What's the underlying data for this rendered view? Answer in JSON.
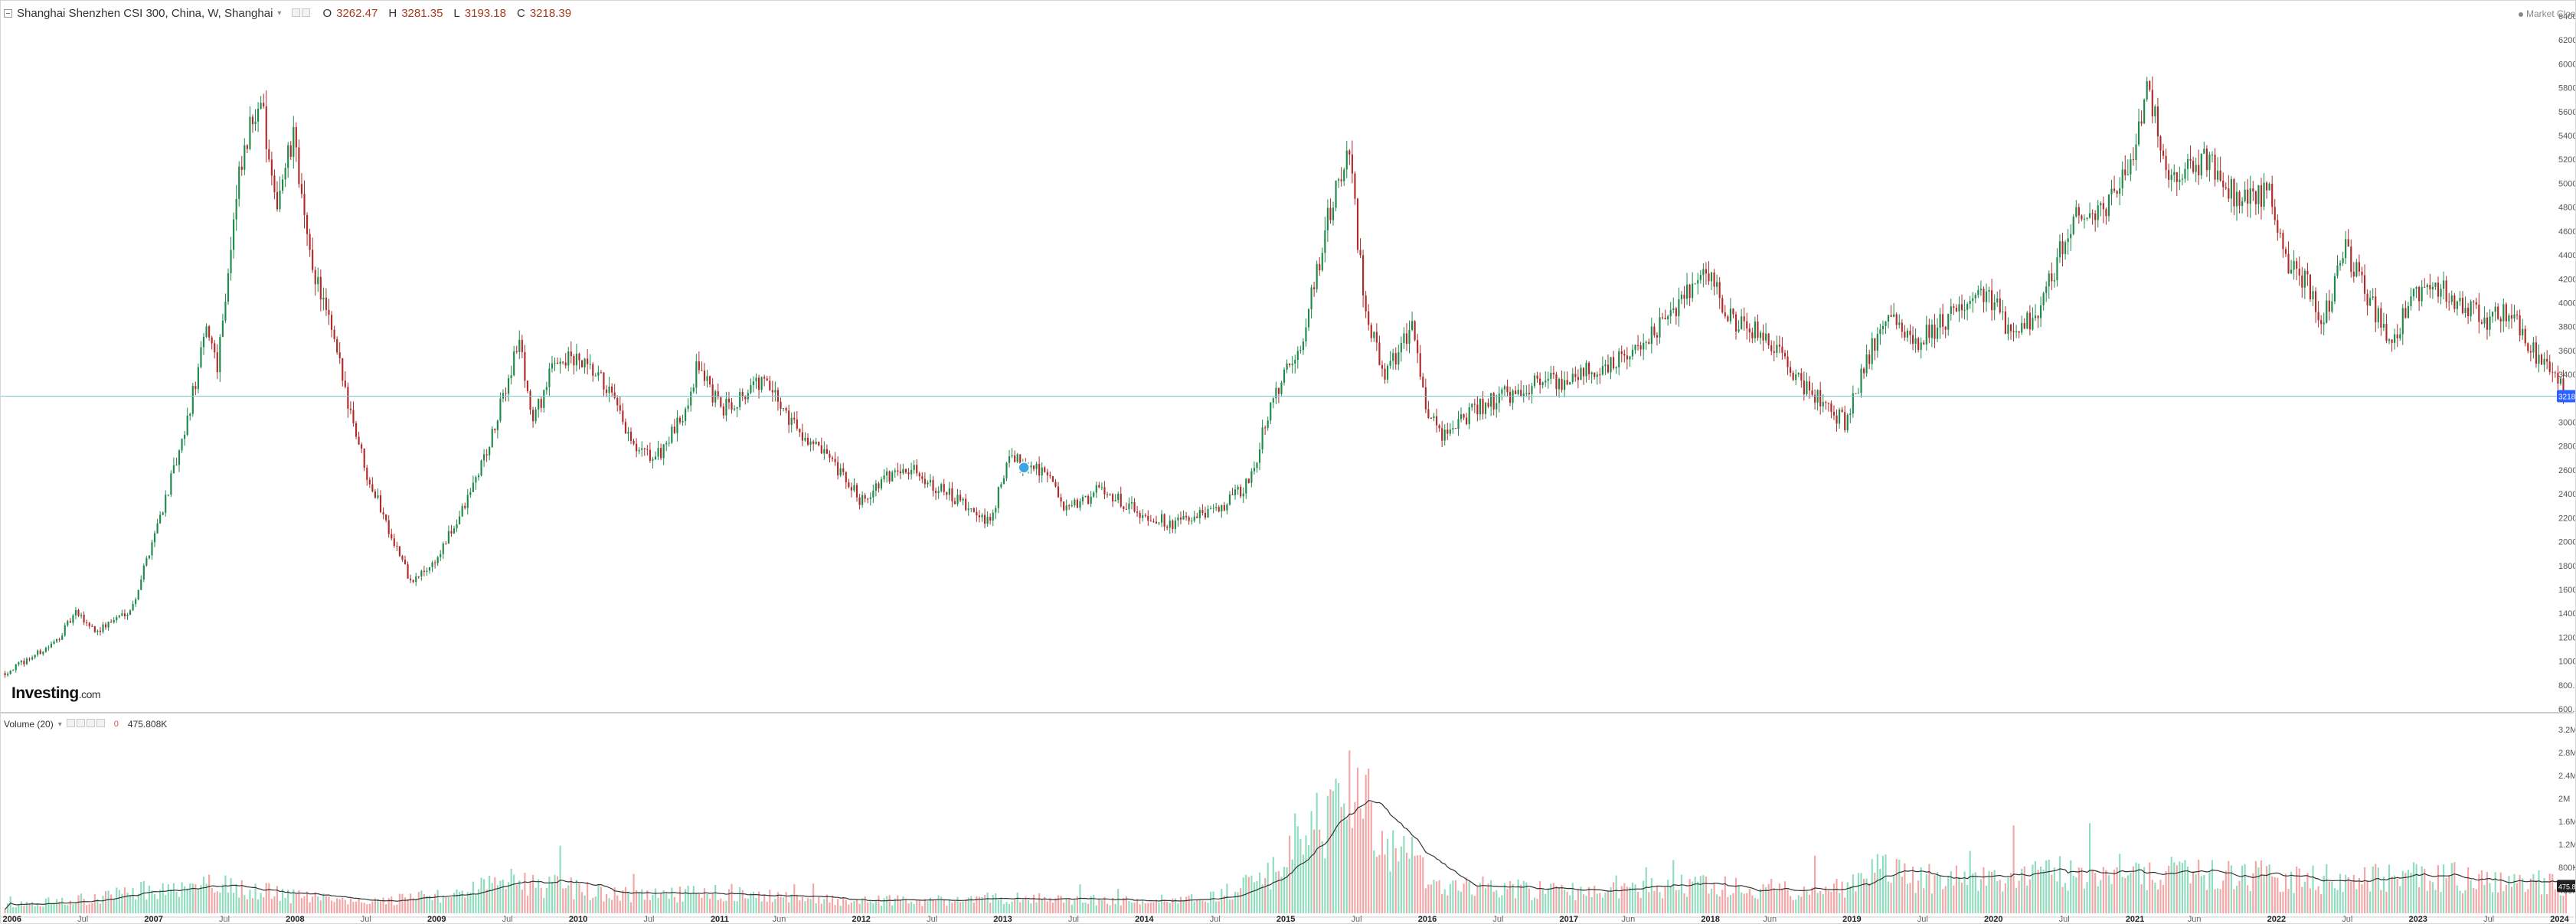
{
  "header": {
    "title": "Shanghai Shenzhen CSI 300, China, W, Shanghai",
    "open_key": "O",
    "open": "3262.47",
    "high_key": "H",
    "high": "3281.35",
    "low_key": "L",
    "low": "3193.18",
    "close_key": "C",
    "close": "3218.39",
    "market_status": "Market Closed"
  },
  "volume_panel": {
    "label": "Volume (20)",
    "value": "475.808K",
    "marker": "0"
  },
  "branding": {
    "logo": "Investing",
    "logo_suffix": ".com"
  },
  "colors": {
    "up": "#26a69a",
    "down": "#ef5350",
    "candle_up": "#1e8a4a",
    "candle_down": "#b02a2a",
    "vol_up": "#8fdcbf",
    "vol_down": "#f3a6a6",
    "price_line": "#7cc7d6",
    "price_tag_bg": "#2962ff",
    "ma_line": "#333333",
    "grid": "#eeeeee"
  },
  "chart_data": [
    {
      "type": "candlestick",
      "title": "Shanghai Shenzhen CSI 300, China, W, Shanghai",
      "interval": "weekly",
      "ylim": [
        600,
        6400
      ],
      "y_ticks": [
        "6400.00",
        "6200.00",
        "6000.00",
        "5800.00",
        "5600.00",
        "5400.00",
        "5200.00",
        "5000.00",
        "4800.00",
        "4600.00",
        "4400.00",
        "4200.00",
        "4000.00",
        "3800.00",
        "3600.00",
        "3400.00",
        "3200.00",
        "3000.00",
        "2800.00",
        "2600.00",
        "2400.00",
        "2200.00",
        "2000.00",
        "1800.00",
        "1600.00",
        "1400.00",
        "1200.00",
        "1000.00",
        "800.00",
        "600.00"
      ],
      "last_price": "3218.39",
      "x_labels": [
        "2006",
        "Jul",
        "2007",
        "Jul",
        "2008",
        "Jul",
        "2009",
        "Jul",
        "2010",
        "Jul",
        "2011",
        "Jun",
        "2012",
        "Jul",
        "2013",
        "Jul",
        "2014",
        "Jul",
        "2015",
        "Jul",
        "2016",
        "Jul",
        "2017",
        "Jun",
        "2018",
        "Jun",
        "2019",
        "Jul",
        "2020",
        "Jul",
        "2021",
        "Jun",
        "2022",
        "Jul",
        "2023",
        "Jul",
        "2024"
      ],
      "x_label_years": [
        2006.0,
        2006.5,
        2007.0,
        2007.5,
        2008.0,
        2008.5,
        2009.0,
        2009.5,
        2010.0,
        2010.5,
        2011.0,
        2011.42,
        2012.0,
        2012.5,
        2013.0,
        2013.5,
        2014.0,
        2014.5,
        2015.0,
        2015.5,
        2016.0,
        2016.5,
        2017.0,
        2017.42,
        2018.0,
        2018.42,
        2019.0,
        2019.5,
        2020.0,
        2020.5,
        2021.0,
        2021.42,
        2022.0,
        2022.5,
        2023.0,
        2023.5,
        2024.0
      ],
      "x_range": [
        2005.92,
        2024.1
      ],
      "series_close_keypoints": [
        [
          2005.95,
          900
        ],
        [
          2006.3,
          1150
        ],
        [
          2006.45,
          1400
        ],
        [
          2006.6,
          1250
        ],
        [
          2006.85,
          1450
        ],
        [
          2007.0,
          2050
        ],
        [
          2007.2,
          2800
        ],
        [
          2007.38,
          3800
        ],
        [
          2007.45,
          3500
        ],
        [
          2007.6,
          5000
        ],
        [
          2007.75,
          5800
        ],
        [
          2007.85,
          4800
        ],
        [
          2008.0,
          5400
        ],
        [
          2008.08,
          4500
        ],
        [
          2008.2,
          4000
        ],
        [
          2008.35,
          3300
        ],
        [
          2008.5,
          2600
        ],
        [
          2008.7,
          2000
        ],
        [
          2008.82,
          1650
        ],
        [
          2009.0,
          1850
        ],
        [
          2009.2,
          2300
        ],
        [
          2009.4,
          2900
        ],
        [
          2009.58,
          3700
        ],
        [
          2009.68,
          3000
        ],
        [
          2009.85,
          3550
        ],
        [
          2010.0,
          3500
        ],
        [
          2010.2,
          3300
        ],
        [
          2010.4,
          2750
        ],
        [
          2010.55,
          2700
        ],
        [
          2010.72,
          3000
        ],
        [
          2010.85,
          3500
        ],
        [
          2011.0,
          3100
        ],
        [
          2011.3,
          3350
        ],
        [
          2011.55,
          2950
        ],
        [
          2011.75,
          2700
        ],
        [
          2012.0,
          2350
        ],
        [
          2012.3,
          2650
        ],
        [
          2012.55,
          2450
        ],
        [
          2012.9,
          2150
        ],
        [
          2013.05,
          2700
        ],
        [
          2013.3,
          2600
        ],
        [
          2013.45,
          2250
        ],
        [
          2013.7,
          2450
        ],
        [
          2013.95,
          2250
        ],
        [
          2014.2,
          2150
        ],
        [
          2014.5,
          2250
        ],
        [
          2014.75,
          2500
        ],
        [
          2014.9,
          3200
        ],
        [
          2015.1,
          3600
        ],
        [
          2015.3,
          4700
        ],
        [
          2015.45,
          5300
        ],
        [
          2015.55,
          4000
        ],
        [
          2015.7,
          3400
        ],
        [
          2015.9,
          3800
        ],
        [
          2016.0,
          3100
        ],
        [
          2016.1,
          2900
        ],
        [
          2016.4,
          3150
        ],
        [
          2016.7,
          3300
        ],
        [
          2016.95,
          3350
        ],
        [
          2017.2,
          3450
        ],
        [
          2017.5,
          3600
        ],
        [
          2017.8,
          4000
        ],
        [
          2017.98,
          4300
        ],
        [
          2018.1,
          3900
        ],
        [
          2018.4,
          3700
        ],
        [
          2018.7,
          3250
        ],
        [
          2018.95,
          3000
        ],
        [
          2019.1,
          3500
        ],
        [
          2019.25,
          3950
        ],
        [
          2019.45,
          3650
        ],
        [
          2019.7,
          3900
        ],
        [
          2019.95,
          4100
        ],
        [
          2020.15,
          3700
        ],
        [
          2020.35,
          4000
        ],
        [
          2020.55,
          4700
        ],
        [
          2020.75,
          4750
        ],
        [
          2020.98,
          5200
        ],
        [
          2021.1,
          5800
        ],
        [
          2021.25,
          5000
        ],
        [
          2021.5,
          5200
        ],
        [
          2021.7,
          4900
        ],
        [
          2021.95,
          4900
        ],
        [
          2022.05,
          4400
        ],
        [
          2022.2,
          4200
        ],
        [
          2022.32,
          3800
        ],
        [
          2022.48,
          4450
        ],
        [
          2022.65,
          4050
        ],
        [
          2022.8,
          3650
        ],
        [
          2022.95,
          4000
        ],
        [
          2023.1,
          4150
        ],
        [
          2023.3,
          4000
        ],
        [
          2023.5,
          3850
        ],
        [
          2023.65,
          3950
        ],
        [
          2023.8,
          3600
        ],
        [
          2023.95,
          3400
        ],
        [
          2024.05,
          3218
        ]
      ]
    },
    {
      "type": "bar",
      "title": "Volume (20)",
      "ylim": [
        0,
        3200000
      ],
      "y_ticks": [
        "3.2M",
        "2.8M",
        "2.4M",
        "2M",
        "1.6M",
        "1.2M",
        "800K",
        "400K"
      ],
      "last_value": "475.808K",
      "moving_average_period": 20,
      "volume_keypoints": [
        [
          2005.95,
          120000
        ],
        [
          2006.5,
          250000
        ],
        [
          2007.0,
          420000
        ],
        [
          2007.5,
          480000
        ],
        [
          2008.0,
          300000
        ],
        [
          2008.5,
          180000
        ],
        [
          2009.0,
          320000
        ],
        [
          2009.5,
          550000
        ],
        [
          2010.0,
          420000
        ],
        [
          2010.5,
          300000
        ],
        [
          2011.0,
          380000
        ],
        [
          2011.5,
          260000
        ],
        [
          2012.0,
          220000
        ],
        [
          2012.5,
          230000
        ],
        [
          2013.0,
          260000
        ],
        [
          2013.5,
          230000
        ],
        [
          2014.0,
          210000
        ],
        [
          2014.5,
          280000
        ],
        [
          2014.85,
          600000
        ],
        [
          2015.1,
          1300000
        ],
        [
          2015.35,
          1700000
        ],
        [
          2015.5,
          2100000
        ],
        [
          2015.7,
          1300000
        ],
        [
          2015.9,
          900000
        ],
        [
          2016.1,
          520000
        ],
        [
          2016.5,
          420000
        ],
        [
          2017.0,
          380000
        ],
        [
          2017.5,
          450000
        ],
        [
          2018.0,
          500000
        ],
        [
          2018.5,
          400000
        ],
        [
          2018.95,
          420000
        ],
        [
          2019.2,
          750000
        ],
        [
          2019.5,
          600000
        ],
        [
          2020.0,
          550000
        ],
        [
          2020.5,
          700000
        ],
        [
          2021.0,
          720000
        ],
        [
          2021.5,
          650000
        ],
        [
          2022.0,
          650000
        ],
        [
          2022.5,
          580000
        ],
        [
          2023.0,
          650000
        ],
        [
          2023.5,
          600000
        ],
        [
          2024.05,
          475808
        ]
      ]
    }
  ]
}
